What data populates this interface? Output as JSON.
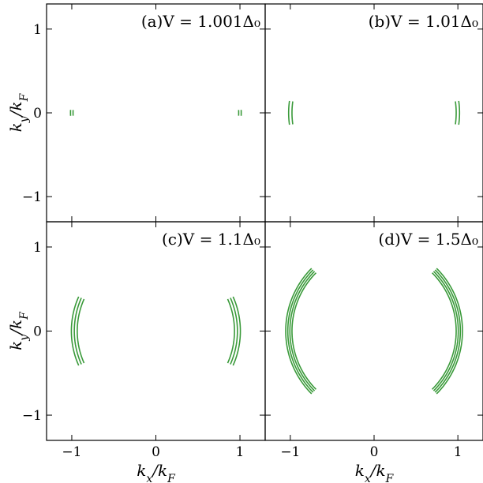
{
  "figure": {
    "y_axis_label": "k_y/k_F",
    "x_axis_label": "k_x/k_F",
    "line_color": "#3a9a3a"
  },
  "chart_data": [
    {
      "type": "line",
      "panel": "a",
      "title": "(a)V = 1.001Δ₀",
      "xlim": [
        -1.3,
        1.3
      ],
      "ylim": [
        -1.3,
        1.3
      ],
      "xticks": [
        -1,
        0,
        1
      ],
      "yticks": [
        -1,
        0,
        1
      ],
      "xlabel": "",
      "ylabel": "k_y/k_F",
      "arc_radii": [
        0.985,
        1.015
      ],
      "half_angle_deg": 2.0
    },
    {
      "type": "line",
      "panel": "b",
      "title": "(b)V = 1.01Δ₀",
      "xlim": [
        -1.3,
        1.3
      ],
      "ylim": [
        -1.3,
        1.3
      ],
      "xticks": [
        -1,
        0,
        1
      ],
      "yticks": [
        -1,
        0,
        1
      ],
      "xlabel": "",
      "ylabel": "",
      "arc_radii": [
        0.98,
        1.02
      ],
      "half_angle_deg": 8.0
    },
    {
      "type": "line",
      "panel": "c",
      "title": "(c)V = 1.1Δ₀",
      "xlim": [
        -1.3,
        1.3
      ],
      "ylim": [
        -1.3,
        1.3
      ],
      "xticks": [
        -1,
        0,
        1
      ],
      "yticks": [
        -1,
        0,
        1
      ],
      "xlabel": "k_x/k_F",
      "ylabel": "k_y/k_F",
      "arc_radii": [
        0.935,
        0.97,
        1.005
      ],
      "half_angle_deg": 24.0
    },
    {
      "type": "line",
      "panel": "d",
      "title": "(d)V = 1.5Δ₀",
      "xlim": [
        -1.3,
        1.3
      ],
      "ylim": [
        -1.3,
        1.3
      ],
      "xticks": [
        -1,
        0,
        1
      ],
      "yticks": [
        -1,
        0,
        1
      ],
      "xlabel": "k_x/k_F",
      "ylabel": "",
      "arc_radii": [
        0.98,
        1.005,
        1.03,
        1.055
      ],
      "half_angle_deg": 45.0
    }
  ]
}
